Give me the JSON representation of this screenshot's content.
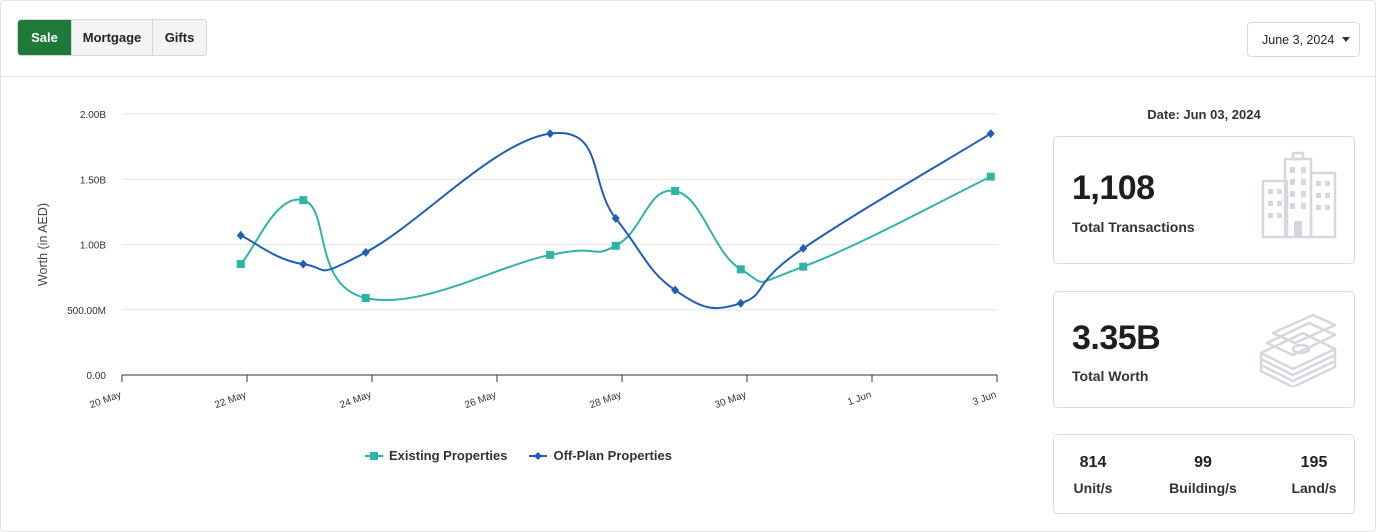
{
  "tabs": [
    {
      "label": "Sale",
      "active": true
    },
    {
      "label": "Mortgage",
      "active": false
    },
    {
      "label": "Gifts",
      "active": false
    }
  ],
  "date_select": {
    "value": "June 3, 2024"
  },
  "summary": {
    "date_label": "Date: Jun 03, 2024",
    "total_transactions": {
      "value": "1,108",
      "label": "Total Transactions",
      "icon": "buildings-icon"
    },
    "total_worth": {
      "value": "3.35B",
      "label": "Total Worth",
      "icon": "money-stack-icon"
    },
    "breakdown": [
      {
        "value": "814",
        "label": "Unit/s"
      },
      {
        "value": "99",
        "label": "Building/s"
      },
      {
        "value": "195",
        "label": "Land/s"
      }
    ]
  },
  "chart_data": {
    "type": "line",
    "ylabel": "Worth (in AED)",
    "xlabel": "",
    "ylim": [
      0,
      2000000000
    ],
    "y_ticks": [
      {
        "value": 0,
        "label": "0.00"
      },
      {
        "value": 500000000,
        "label": "500.00M"
      },
      {
        "value": 1000000000,
        "label": "1.00B"
      },
      {
        "value": 1500000000,
        "label": "1.50B"
      },
      {
        "value": 2000000000,
        "label": "2.00B"
      }
    ],
    "x_ticks": [
      "20 May",
      "22 May",
      "24 May",
      "26 May",
      "28 May",
      "30 May",
      "1 Jun",
      "3 Jun"
    ],
    "x_tick_days": [
      0,
      2,
      4,
      6,
      8,
      10,
      12,
      14
    ],
    "xlim_days": [
      0,
      14
    ],
    "grid": true,
    "legend_position": "bottom",
    "series": [
      {
        "name": "Existing Properties",
        "color": "#2fb5a6",
        "marker": "square",
        "x_days": [
          1.9,
          2.9,
          3.9,
          6.85,
          7.9,
          8.85,
          9.9,
          10.9,
          13.9
        ],
        "values": [
          850000000,
          1340000000,
          590000000,
          920000000,
          990000000,
          1410000000,
          810000000,
          830000000,
          1520000000
        ]
      },
      {
        "name": "Off-Plan Properties",
        "color": "#1f5fb8",
        "marker": "diamond",
        "x_days": [
          1.9,
          2.9,
          3.9,
          6.85,
          7.9,
          8.85,
          9.9,
          10.9,
          13.9
        ],
        "values": [
          1070000000,
          850000000,
          940000000,
          1850000000,
          1200000000,
          650000000,
          550000000,
          970000000,
          1850000000
        ]
      }
    ]
  }
}
